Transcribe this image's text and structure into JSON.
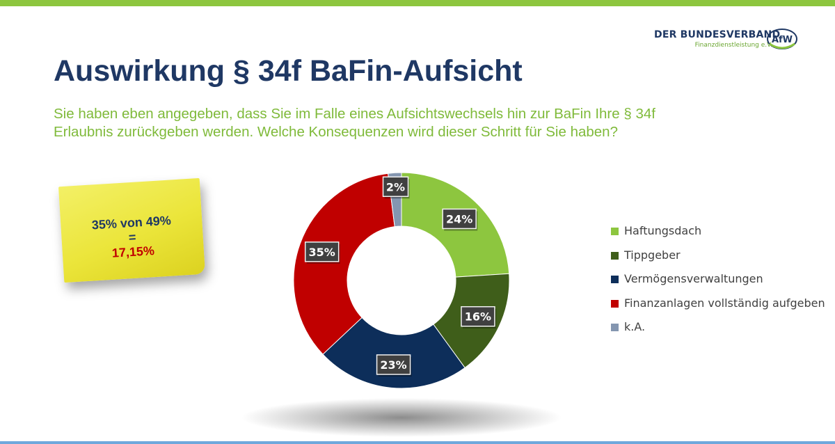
{
  "header": {
    "logo_main": "DER BUNDESVERBAND",
    "logo_sub": "Finanzdienstleistung e.V.",
    "logo_badge": "AfW"
  },
  "title": "Auswirkung § 34f BaFin-Aufsicht",
  "subtitle": {
    "line1": "Sie haben eben angegeben, dass Sie im Falle eines Aufsichtswechsels hin zur BaFin Ihre § 34f",
    "line2": "Erlaubnis  zurückgeben werden. Welche Konsequenzen wird dieser Schritt für Sie haben?"
  },
  "note": {
    "line1": "35% von 49%",
    "line2": "=",
    "line3": "17,15%"
  },
  "colors": {
    "brand_green": "#8dc63f",
    "title_navy": "#1f3864",
    "note_red": "#c00000"
  },
  "chart_data": {
    "type": "pie",
    "variant": "donut",
    "categories": [
      "Haftungsdach",
      "Tippgeber",
      "Vermögensverwaltungen",
      "Finanzanlagen vollständig aufgeben",
      "k.A."
    ],
    "values": [
      24,
      16,
      23,
      35,
      2
    ],
    "labels": [
      "24%",
      "16%",
      "23%",
      "35%",
      "2%"
    ],
    "colors": [
      "#8dc63f",
      "#3f5e1a",
      "#0d2e5a",
      "#c00000",
      "#8496b0"
    ],
    "title": "",
    "legend_position": "right"
  }
}
